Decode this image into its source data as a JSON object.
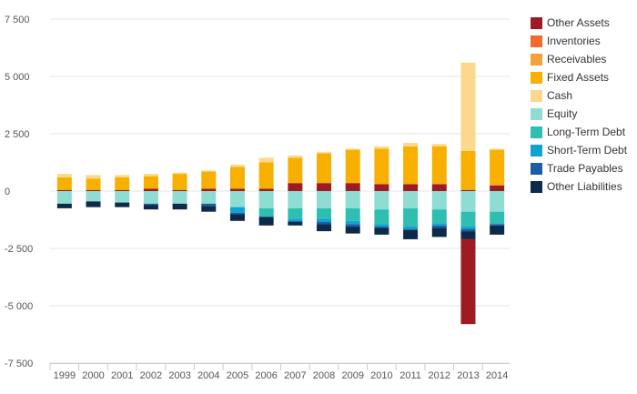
{
  "chart_data": {
    "type": "bar",
    "stacked": true,
    "categories": [
      "1999",
      "2000",
      "2001",
      "2002",
      "2003",
      "2004",
      "2005",
      "2006",
      "2007",
      "2008",
      "2009",
      "2010",
      "2011",
      "2012",
      "2013",
      "2014"
    ],
    "ylim": [
      -7500,
      7500
    ],
    "yticks": [
      -7500,
      -5000,
      -2500,
      0,
      2500,
      5000,
      7500
    ],
    "ytick_labels": [
      "-7 500",
      "-5 000",
      "-2 500",
      "0",
      "2 500",
      "5 000",
      "7 500"
    ],
    "grid": true,
    "legend_position": "right",
    "series": [
      {
        "name": "Other Assets",
        "color": "#9e1b23",
        "values": [
          50,
          50,
          50,
          100,
          50,
          100,
          100,
          100,
          350,
          350,
          350,
          300,
          300,
          300,
          50,
          250
        ]
      },
      {
        "name": "Inventories",
        "color": "#f26b2a",
        "values": [
          0,
          0,
          0,
          0,
          0,
          0,
          0,
          0,
          0,
          0,
          0,
          0,
          0,
          0,
          0,
          0
        ]
      },
      {
        "name": "Receivables",
        "color": "#f5a03a",
        "values": [
          0,
          0,
          0,
          0,
          0,
          0,
          0,
          0,
          0,
          0,
          0,
          0,
          0,
          0,
          0,
          0
        ]
      },
      {
        "name": "Fixed Assets",
        "color": "#f7b000",
        "values": [
          550,
          500,
          550,
          550,
          700,
          750,
          950,
          1150,
          1100,
          1300,
          1450,
          1550,
          1650,
          1650,
          1700,
          1550
        ]
      },
      {
        "name": "Cash",
        "color": "#fcd88c",
        "values": [
          150,
          150,
          100,
          100,
          50,
          50,
          100,
          200,
          100,
          50,
          50,
          100,
          150,
          100,
          3850,
          50
        ]
      },
      {
        "name": "Equity",
        "color": "#8fdcd2",
        "values": [
          -550,
          -450,
          -500,
          -550,
          -550,
          -550,
          -700,
          -750,
          -750,
          -750,
          -750,
          -800,
          -750,
          -800,
          -900,
          -900
        ]
      },
      {
        "name": "Long-Term Debt",
        "color": "#2fbfb0",
        "values": [
          0,
          0,
          0,
          0,
          0,
          0,
          0,
          -350,
          -450,
          -450,
          -550,
          -650,
          -800,
          -600,
          -650,
          -500
        ]
      },
      {
        "name": "Short-Term Debt",
        "color": "#10a3cf",
        "values": [
          0,
          0,
          0,
          0,
          0,
          0,
          -250,
          0,
          -100,
          -150,
          -150,
          -100,
          -100,
          -100,
          -100,
          -50
        ]
      },
      {
        "name": "Trade Payables",
        "color": "#1a5ea8",
        "values": [
          0,
          0,
          0,
          -50,
          0,
          -100,
          -50,
          -50,
          -50,
          -100,
          -100,
          -50,
          -50,
          -100,
          -100,
          -50
        ]
      },
      {
        "name": "Other Liabilities",
        "color": "#0d2a4a",
        "values": [
          -200,
          -250,
          -200,
          -200,
          -250,
          -250,
          -300,
          -350,
          -150,
          -300,
          -300,
          -300,
          -400,
          -400,
          -350,
          -400
        ]
      }
    ],
    "extra_negative": {
      "name": "Other Assets",
      "values": [
        0,
        0,
        0,
        0,
        0,
        0,
        0,
        0,
        0,
        0,
        0,
        0,
        0,
        0,
        -3700,
        0
      ]
    }
  }
}
